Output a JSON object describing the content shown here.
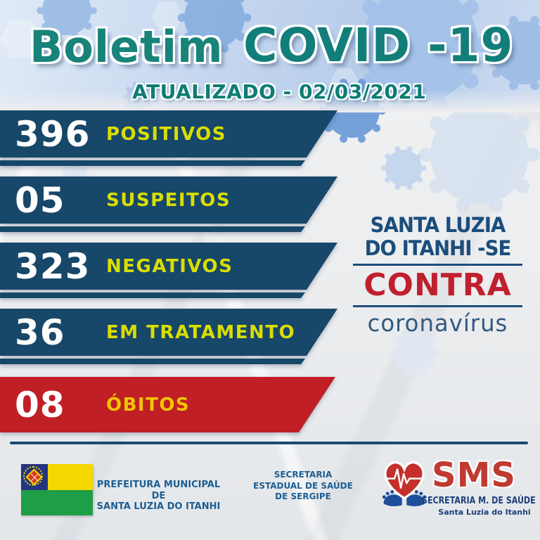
{
  "header": {
    "title_script": "Boletim",
    "title_main": "COVID -19",
    "updated": "ATUALIZADO - 02/03/2021"
  },
  "stats": [
    {
      "value": "396",
      "label": "POSITIVOS",
      "style": "navy"
    },
    {
      "value": "05",
      "label": "SUSPEITOS",
      "style": "navy"
    },
    {
      "value": "323",
      "label": "NEGATIVOS",
      "style": "navy"
    },
    {
      "value": "36",
      "label": "EM TRATAMENTO",
      "style": "navy"
    },
    {
      "value": "08",
      "label": "ÓBITOS",
      "style": "red"
    }
  ],
  "campaign": {
    "city_line1": "SANTA LUZIA",
    "city_line2": "DO ITANHI -SE",
    "against": "CONTRA",
    "virus_word": "coronavírus"
  },
  "footer": {
    "prefeitura_line1": "PREFEITURA MUNICIPAL DE",
    "prefeitura_line2": "SANTA LUZIA DO ITANHI",
    "secretaria_estadual_line1": "SECRETARIA",
    "secretaria_estadual_line2": "ESTADUAL DE SAÚDE",
    "secretaria_estadual_line3": "DE SERGIPE",
    "sms": {
      "acronym": "SMS",
      "name": "SECRETARIA M. DE SAÚDE",
      "city": "Santa Luzia do Itanhi"
    }
  },
  "colors": {
    "banner_navy": "#174769",
    "banner_red": "#c01f26",
    "header_teal": "#12857b",
    "label_yellow_green": "#d9de00",
    "label_gold": "#f1c400",
    "campaign_navy": "#1b4d7c",
    "campaign_red": "#c0202e",
    "footer_navy": "#1d5e93"
  }
}
